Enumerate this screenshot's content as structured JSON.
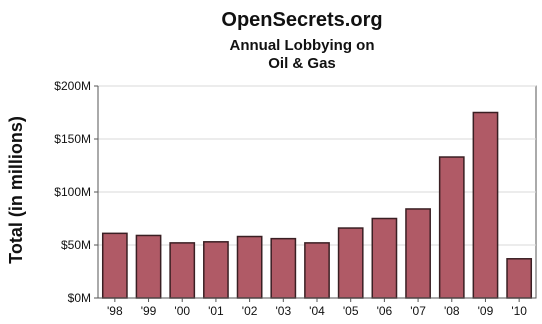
{
  "chart_data": {
    "type": "bar",
    "title": "OpenSecrets.org",
    "subtitle_lines": [
      "Annual Lobbying on",
      "Oil & Gas"
    ],
    "xlabel": "",
    "ylabel": "Total (in millions)",
    "categories": [
      "'98",
      "'99",
      "'00",
      "'01",
      "'02",
      "'03",
      "'04",
      "'05",
      "'06",
      "'07",
      "'08",
      "'09",
      "'10"
    ],
    "values": [
      61,
      59,
      52,
      53,
      58,
      56,
      52,
      66,
      75,
      84,
      133,
      175,
      37
    ],
    "ylim": [
      0,
      200
    ],
    "yticks": [
      0,
      50,
      100,
      150,
      200
    ],
    "ytick_labels": [
      "$0M",
      "$50M",
      "$100M",
      "$150M",
      "$200M"
    ],
    "grid": true,
    "legend": "none",
    "colors": {
      "bar_fill": "#b05a66",
      "bar_stroke": "#3a1f23",
      "grid": "#d9d9d9",
      "axis": "#555555",
      "plot_background": "#ffffff"
    }
  }
}
